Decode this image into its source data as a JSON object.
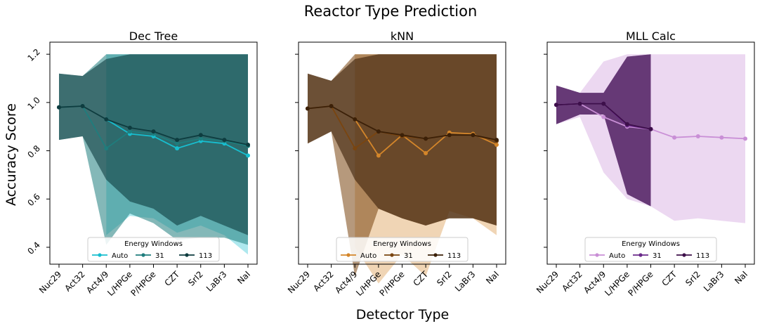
{
  "figure": {
    "title": "Reactor Type Prediction",
    "xlabel": "Detector Type",
    "ylabel": "Accuracy Score"
  },
  "chart_data": [
    {
      "type": "line",
      "title": "Dec Tree",
      "categories": [
        "Nuc29",
        "Act32",
        "Act4/9",
        "L/HPGe",
        "P/HPGe",
        "CZT",
        "SrI2",
        "LaBr3",
        "NaI"
      ],
      "ylim": [
        0.33,
        1.25
      ],
      "yticks": [
        0.4,
        0.6,
        0.8,
        1.0,
        1.2
      ],
      "legend": {
        "title": "Energy Windows",
        "position": "lower-center"
      },
      "series": [
        {
          "name": "Auto",
          "color": "#17becf",
          "values": [
            null,
            null,
            0.93,
            0.87,
            0.86,
            0.81,
            0.84,
            0.83,
            0.78
          ],
          "band_low": [
            null,
            null,
            0.45,
            0.53,
            0.52,
            0.46,
            0.49,
            0.45,
            0.37
          ],
          "band_high": [
            null,
            null,
            1.2,
            1.2,
            1.2,
            1.2,
            1.2,
            1.2,
            1.2
          ]
        },
        {
          "name": "31",
          "color": "#1f7d7d",
          "values": [
            0.98,
            0.985,
            0.81,
            0.88,
            0.87,
            0.83,
            0.85,
            0.84,
            0.82
          ],
          "band_low": [
            0.845,
            0.86,
            0.41,
            0.54,
            0.5,
            0.43,
            0.44,
            0.44,
            0.41
          ],
          "band_high": [
            1.12,
            1.11,
            1.2,
            1.2,
            1.2,
            1.2,
            1.2,
            1.2,
            1.2
          ]
        },
        {
          "name": "113",
          "color": "#0e3c3f",
          "values": [
            0.98,
            0.985,
            0.93,
            0.895,
            0.88,
            0.845,
            0.865,
            0.845,
            0.825
          ],
          "band_low": [
            0.845,
            0.86,
            0.68,
            0.59,
            0.56,
            0.49,
            0.53,
            0.49,
            0.45
          ],
          "band_high": [
            1.12,
            1.11,
            1.18,
            1.2,
            1.2,
            1.2,
            1.2,
            1.2,
            1.2
          ]
        }
      ]
    },
    {
      "type": "line",
      "title": "kNN",
      "categories": [
        "Nuc29",
        "Act32",
        "Act4/9",
        "L/HPGe",
        "P/HPGe",
        "CZT",
        "SrI2",
        "LaBr3",
        "NaI"
      ],
      "ylim": [
        0.33,
        1.25
      ],
      "yticks": [
        0.4,
        0.6,
        0.8,
        1.0,
        1.2
      ],
      "legend": {
        "title": "Energy Windows",
        "position": "lower-center"
      },
      "series": [
        {
          "name": "Auto",
          "color": "#d4862a",
          "values": [
            null,
            null,
            0.93,
            0.78,
            0.865,
            0.79,
            0.875,
            0.87,
            0.825
          ],
          "band_low": [
            null,
            null,
            0.4,
            0.25,
            0.37,
            0.28,
            0.55,
            0.52,
            0.45
          ],
          "band_high": [
            null,
            null,
            1.2,
            1.2,
            1.2,
            1.2,
            1.2,
            1.2,
            1.2
          ]
        },
        {
          "name": "31",
          "color": "#7a4510",
          "values": [
            0.975,
            0.985,
            0.81,
            0.88,
            0.86,
            0.85,
            0.865,
            0.865,
            0.84
          ],
          "band_low": [
            0.83,
            0.88,
            0.28,
            0.56,
            0.52,
            0.49,
            0.52,
            0.52,
            0.49
          ],
          "band_high": [
            1.12,
            1.09,
            1.2,
            1.2,
            1.2,
            1.2,
            1.2,
            1.2,
            1.2
          ]
        },
        {
          "name": "113",
          "color": "#3b2008",
          "values": [
            0.975,
            0.985,
            0.93,
            0.88,
            0.865,
            0.85,
            0.865,
            0.865,
            0.845
          ],
          "band_low": [
            0.83,
            0.88,
            0.68,
            0.56,
            0.52,
            0.49,
            0.52,
            0.52,
            0.49
          ],
          "band_high": [
            1.12,
            1.09,
            1.18,
            1.2,
            1.2,
            1.2,
            1.2,
            1.2,
            1.2
          ]
        }
      ]
    },
    {
      "type": "line",
      "title": "MLL Calc",
      "categories": [
        "Nuc29",
        "Act32",
        "Act4/9",
        "L/HPGe",
        "P/HPGe",
        "CZT",
        "SrI2",
        "LaBr3",
        "NaI"
      ],
      "ylim": [
        0.33,
        1.25
      ],
      "yticks": [
        0.4,
        0.6,
        0.8,
        1.0,
        1.2
      ],
      "legend": {
        "title": "Energy Windows",
        "position": "lower-center"
      },
      "series": [
        {
          "name": "Auto",
          "color": "#c98fd6",
          "values": [
            0.99,
            0.995,
            0.94,
            0.9,
            0.89,
            0.855,
            0.86,
            0.855,
            0.85
          ],
          "band_low": [
            0.91,
            0.94,
            0.71,
            0.6,
            0.57,
            0.51,
            0.52,
            0.51,
            0.5
          ],
          "band_high": [
            1.07,
            1.04,
            1.17,
            1.2,
            1.2,
            1.2,
            1.2,
            1.2,
            1.2
          ]
        },
        {
          "name": "31",
          "color": "#6a2a8a",
          "values": [
            0.99,
            0.995,
            0.995,
            0.905,
            0.89,
            null,
            null,
            null,
            null
          ],
          "band_low": [
            0.91,
            0.95,
            0.95,
            0.62,
            0.57,
            null,
            null,
            null,
            null
          ],
          "band_high": [
            1.07,
            1.04,
            1.04,
            1.19,
            1.2,
            null,
            null,
            null,
            null
          ]
        },
        {
          "name": "113",
          "color": "#3d0f4a",
          "values": [
            0.99,
            0.995,
            0.995,
            0.91,
            0.89,
            null,
            null,
            null,
            null
          ],
          "band_low": [
            0.91,
            0.95,
            0.95,
            0.62,
            0.57,
            null,
            null,
            null,
            null
          ],
          "band_high": [
            1.07,
            1.04,
            1.04,
            1.19,
            1.2,
            null,
            null,
            null,
            null
          ]
        }
      ]
    }
  ]
}
